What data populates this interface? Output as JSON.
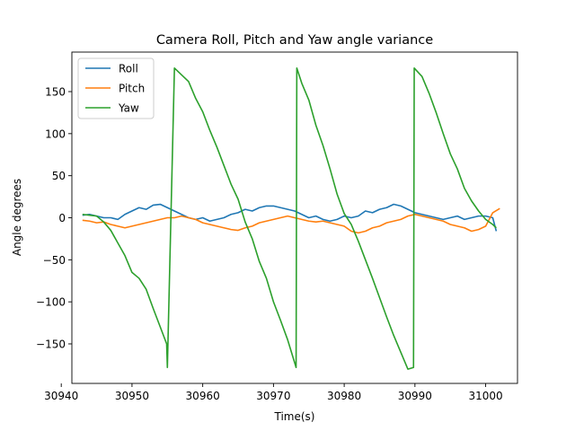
{
  "chart_data": {
    "type": "line",
    "title": "Camera Roll, Pitch and Yaw angle variance",
    "xlabel": "Time(s)",
    "ylabel": "Angle degrees",
    "xlim": [
      30941.5,
      31004.5
    ],
    "ylim": [
      -197,
      197
    ],
    "xticks": [
      30940,
      30950,
      30960,
      30970,
      30980,
      30990,
      31000
    ],
    "yticks": [
      -150,
      -100,
      -50,
      0,
      50,
      100,
      150
    ],
    "xtick_labels": [
      "30940",
      "30950",
      "30960",
      "30970",
      "30980",
      "30990",
      "31000"
    ],
    "ytick_labels": [
      "−150",
      "−100",
      "−50",
      "0",
      "50",
      "100",
      "150"
    ],
    "grid": false,
    "legend_position": "upper-left",
    "series": [
      {
        "name": "Roll",
        "color": "#1f77b4",
        "x": [
          30943,
          30944,
          30945,
          30946,
          30947,
          30948,
          30949,
          30950,
          30951,
          30952,
          30953,
          30954,
          30955,
          30956,
          30957,
          30958,
          30959,
          30960,
          30961,
          30962,
          30963,
          30964,
          30965,
          30966,
          30967,
          30968,
          30969,
          30970,
          30971,
          30972,
          30973,
          30974,
          30975,
          30976,
          30977,
          30978,
          30979,
          30980,
          30981,
          30982,
          30983,
          30984,
          30985,
          30986,
          30987,
          30988,
          30989,
          30990,
          30991,
          30992,
          30993,
          30994,
          30995,
          30996,
          30997,
          30998,
          30999,
          31000,
          31001,
          31001.5
        ],
        "y": [
          3,
          4,
          2,
          0,
          0,
          -2,
          4,
          8,
          12,
          10,
          15,
          16,
          12,
          8,
          4,
          0,
          -2,
          0,
          -4,
          -2,
          0,
          4,
          6,
          10,
          8,
          12,
          14,
          14,
          12,
          10,
          8,
          4,
          0,
          2,
          -2,
          -4,
          -2,
          2,
          0,
          2,
          8,
          6,
          10,
          12,
          16,
          14,
          10,
          6,
          4,
          2,
          0,
          -2,
          0,
          2,
          -2,
          0,
          2,
          2,
          0,
          -16
        ]
      },
      {
        "name": "Pitch",
        "color": "#ff7f0e",
        "x": [
          30943,
          30944,
          30945,
          30946,
          30947,
          30948,
          30949,
          30950,
          30951,
          30952,
          30953,
          30954,
          30955,
          30956,
          30957,
          30958,
          30959,
          30960,
          30961,
          30962,
          30963,
          30964,
          30965,
          30966,
          30967,
          30968,
          30969,
          30970,
          30971,
          30972,
          30973,
          30974,
          30975,
          30976,
          30977,
          30978,
          30979,
          30980,
          30981,
          30982,
          30983,
          30984,
          30985,
          30986,
          30987,
          30988,
          30989,
          30990,
          30991,
          30992,
          30993,
          30994,
          30995,
          30996,
          30997,
          30998,
          30999,
          31000,
          31001,
          31002
        ],
        "y": [
          -3,
          -4,
          -6,
          -5,
          -8,
          -10,
          -12,
          -10,
          -8,
          -6,
          -4,
          -2,
          0,
          0,
          2,
          0,
          -2,
          -6,
          -8,
          -10,
          -12,
          -14,
          -15,
          -12,
          -10,
          -6,
          -4,
          -2,
          0,
          2,
          0,
          -2,
          -4,
          -5,
          -4,
          -6,
          -8,
          -10,
          -16,
          -18,
          -16,
          -12,
          -10,
          -6,
          -4,
          -2,
          2,
          4,
          2,
          0,
          -2,
          -4,
          -8,
          -10,
          -12,
          -16,
          -14,
          -10,
          6,
          11
        ]
      },
      {
        "name": "Yaw",
        "color": "#2ca02c",
        "x": [
          30943,
          30944,
          30945,
          30946,
          30947,
          30948,
          30949,
          30950,
          30951,
          30952,
          30953,
          30954,
          30954.9,
          30955,
          30956,
          30957,
          30958,
          30959,
          30960,
          30961,
          30962,
          30963,
          30964,
          30965,
          30966,
          30967,
          30968,
          30969,
          30970,
          30971,
          30972,
          30973.2,
          30973.3,
          30974,
          30975,
          30976,
          30977,
          30978,
          30979,
          30980,
          30981,
          30982,
          30983,
          30984,
          30985,
          30986,
          30987,
          30988,
          30989,
          30989.8,
          30989.9,
          30991,
          30992,
          30993,
          30994,
          30995,
          30996,
          30997,
          30998,
          30999,
          31000,
          31001,
          31001.5
        ],
        "y": [
          4,
          3,
          2,
          -5,
          -15,
          -30,
          -45,
          -65,
          -72,
          -85,
          -108,
          -130,
          -150,
          -178,
          178,
          170,
          162,
          142,
          126,
          104,
          84,
          62,
          40,
          22,
          -5,
          -25,
          -52,
          -72,
          -100,
          -122,
          -145,
          -178,
          178,
          160,
          140,
          110,
          86,
          58,
          28,
          5,
          -8,
          -28,
          -50,
          -72,
          -95,
          -118,
          -140,
          -160,
          -180,
          -178,
          178,
          168,
          148,
          125,
          100,
          76,
          58,
          35,
          20,
          8,
          -2,
          -8,
          -12
        ]
      }
    ]
  }
}
